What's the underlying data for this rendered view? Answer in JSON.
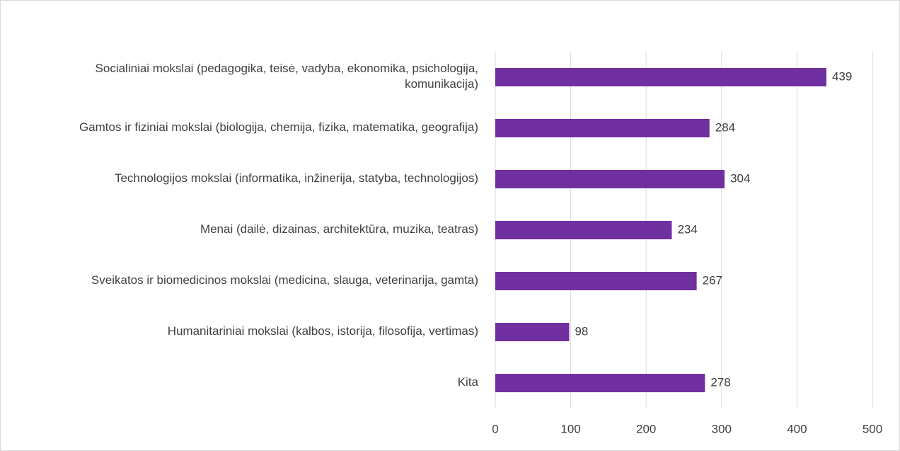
{
  "chart_data": {
    "type": "bar",
    "orientation": "horizontal",
    "categories": [
      "Socialiniai mokslai (pedagogika, teisė, vadyba, ekonomika, psichologija, komunikacija)",
      "Gamtos ir fiziniai mokslai (biologija, chemija, fizika, matematika, geografija)",
      "Technologijos mokslai (informatika, inžinerija, statyba, technologijos)",
      "Menai (dailė, dizainas, architektūra, muzika, teatras)",
      "Sveikatos ir biomedicinos mokslai (medicina, slauga, veterinarija, gamta)",
      "Humanitariniai mokslai (kalbos, istorija, filosofija, vertimas)",
      "Kita"
    ],
    "values": [
      439,
      284,
      304,
      234,
      267,
      98,
      278
    ],
    "color": "#7030a0",
    "xlim": [
      0,
      500
    ],
    "xticks": [
      0,
      100,
      200,
      300,
      400,
      500
    ],
    "grid": true
  }
}
